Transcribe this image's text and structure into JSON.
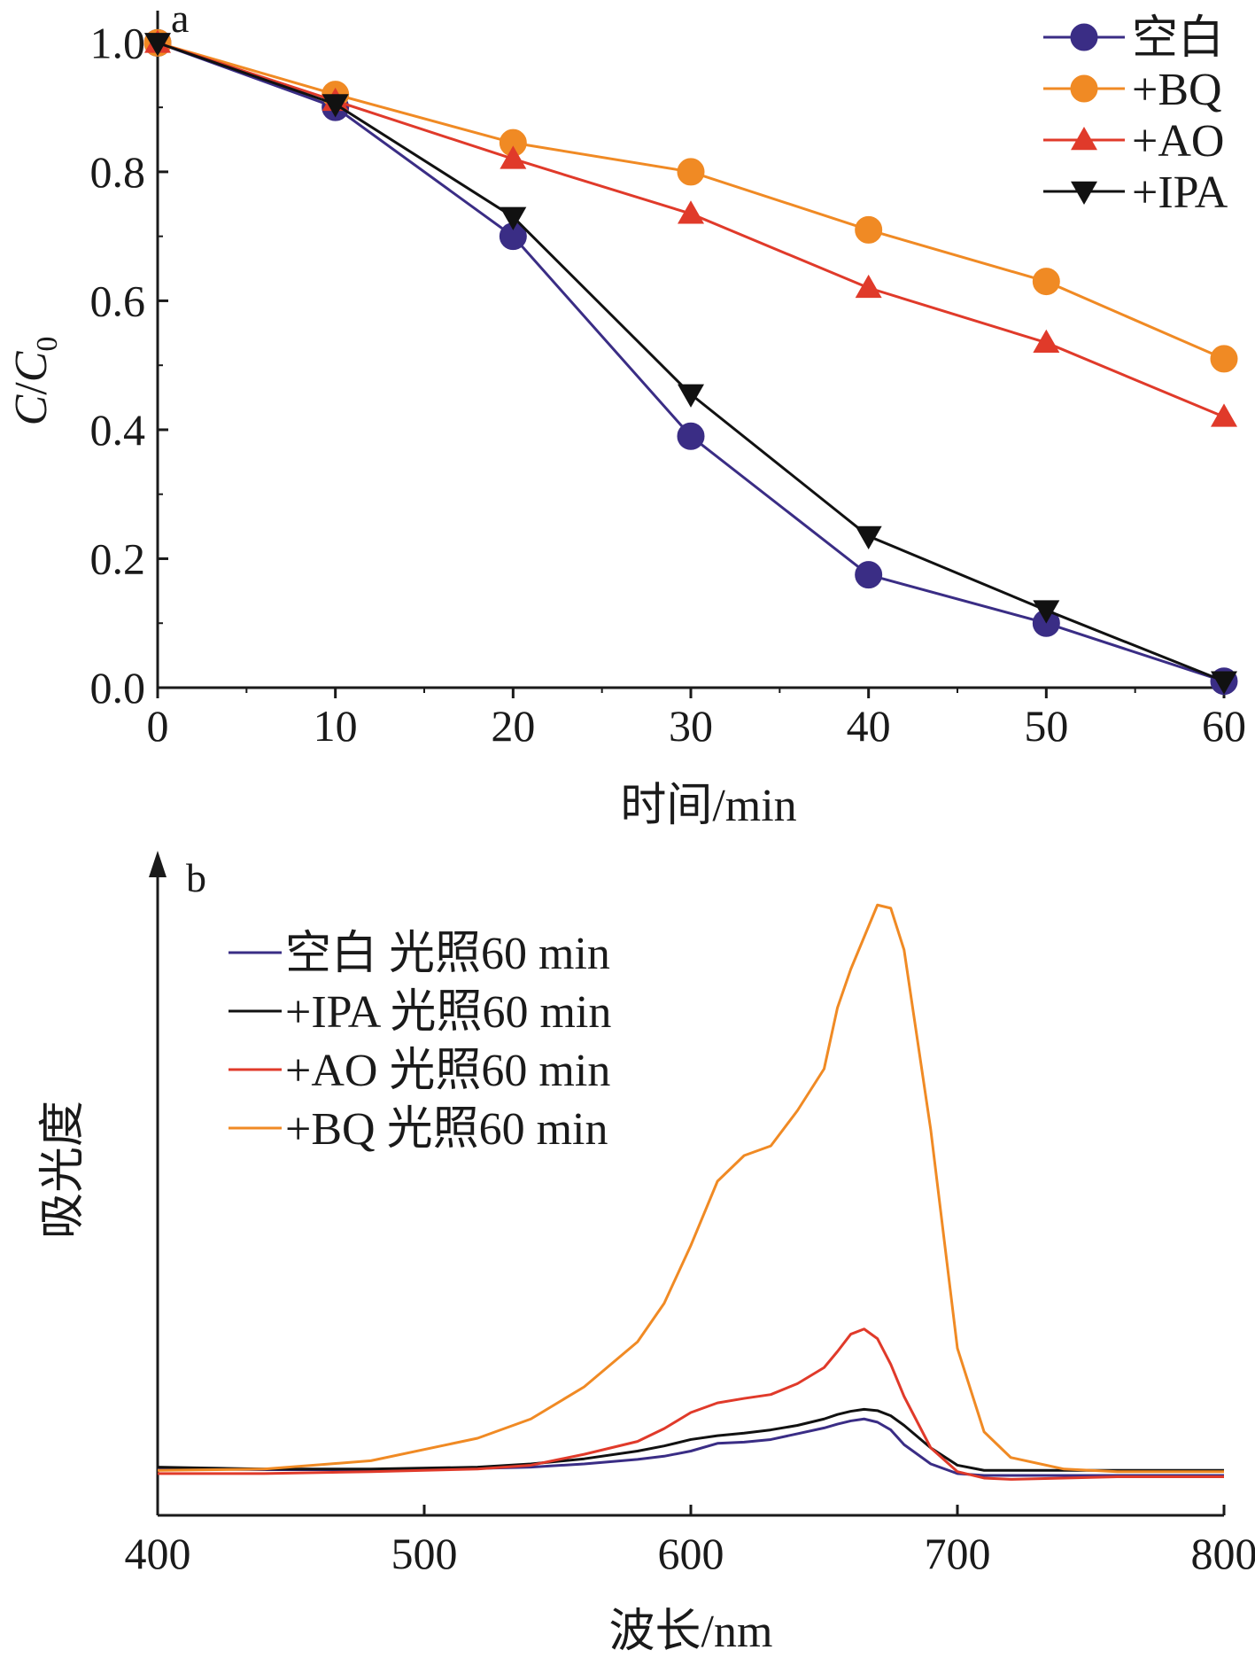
{
  "chart_data": [
    {
      "panel_label": "a",
      "type": "line",
      "xlabel": "时间/min",
      "ylabel_main": "C",
      "ylabel_sep": "/",
      "ylabel_sub_base": "C",
      "ylabel_sub": "0",
      "xlim": [
        0,
        60
      ],
      "ylim": [
        0,
        1.05
      ],
      "x_ticks": [
        "0",
        "10",
        "20",
        "30",
        "40",
        "50",
        "60"
      ],
      "y_ticks": [
        "0.0",
        "0.2",
        "0.4",
        "0.6",
        "0.8",
        "1.0"
      ],
      "x": [
        0,
        10,
        20,
        30,
        40,
        50,
        60
      ],
      "legend_position": "top-right",
      "series": [
        {
          "name": "空白",
          "color": "#3a2d85",
          "marker": "circle",
          "values": [
            1.0,
            0.9,
            0.7,
            0.39,
            0.175,
            0.1,
            0.01
          ]
        },
        {
          "name": "+BQ",
          "color": "#f08a24",
          "marker": "circle",
          "values": [
            1.0,
            0.92,
            0.845,
            0.8,
            0.71,
            0.63,
            0.51
          ]
        },
        {
          "name": "+AO",
          "color": "#e03a2a",
          "marker": "triangle-up",
          "values": [
            1.0,
            0.91,
            0.82,
            0.735,
            0.62,
            0.535,
            0.42
          ]
        },
        {
          "name": "+IPA",
          "color": "#111111",
          "marker": "triangle-down",
          "values": [
            1.0,
            0.905,
            0.73,
            0.455,
            0.235,
            0.12,
            0.01
          ]
        }
      ]
    },
    {
      "panel_label": "b",
      "type": "line",
      "xlabel": "波长/nm",
      "ylabel": "吸光度",
      "xlim": [
        400,
        800
      ],
      "ylim": [
        0,
        1.0
      ],
      "x_ticks": [
        "400",
        "500",
        "600",
        "700",
        "800"
      ],
      "legend_position": "top-left",
      "x": [
        400,
        440,
        480,
        520,
        540,
        560,
        580,
        590,
        600,
        610,
        620,
        630,
        640,
        650,
        655,
        660,
        665,
        670,
        675,
        680,
        690,
        700,
        710,
        720,
        740,
        760,
        780,
        800
      ],
      "series": [
        {
          "name": "空白 光照60 min",
          "color": "#3a2d85",
          "values": [
            0.073,
            0.071,
            0.071,
            0.073,
            0.075,
            0.08,
            0.087,
            0.092,
            0.1,
            0.112,
            0.114,
            0.118,
            0.127,
            0.136,
            0.142,
            0.147,
            0.15,
            0.145,
            0.133,
            0.11,
            0.08,
            0.065,
            0.062,
            0.062,
            0.062,
            0.062,
            0.062,
            0.062
          ]
        },
        {
          "name": "+IPA 光照60 min",
          "color": "#111111",
          "values": [
            0.075,
            0.072,
            0.072,
            0.075,
            0.08,
            0.088,
            0.1,
            0.108,
            0.118,
            0.124,
            0.128,
            0.133,
            0.14,
            0.15,
            0.157,
            0.162,
            0.165,
            0.163,
            0.155,
            0.14,
            0.105,
            0.078,
            0.07,
            0.07,
            0.07,
            0.07,
            0.07,
            0.07
          ]
        },
        {
          "name": "+AO 光照60 min",
          "color": "#e03a2a",
          "values": [
            0.065,
            0.065,
            0.068,
            0.072,
            0.078,
            0.095,
            0.115,
            0.135,
            0.16,
            0.175,
            0.182,
            0.188,
            0.205,
            0.23,
            0.255,
            0.282,
            0.29,
            0.275,
            0.235,
            0.185,
            0.105,
            0.068,
            0.058,
            0.056,
            0.058,
            0.06,
            0.06,
            0.06
          ]
        },
        {
          "name": "+BQ 光照60 min",
          "color": "#f08a24",
          "values": [
            0.07,
            0.072,
            0.085,
            0.12,
            0.15,
            0.2,
            0.27,
            0.33,
            0.42,
            0.52,
            0.56,
            0.575,
            0.63,
            0.695,
            0.79,
            0.85,
            0.9,
            0.95,
            0.945,
            0.88,
            0.6,
            0.26,
            0.13,
            0.09,
            0.072,
            0.068,
            0.068,
            0.068
          ]
        }
      ]
    }
  ]
}
